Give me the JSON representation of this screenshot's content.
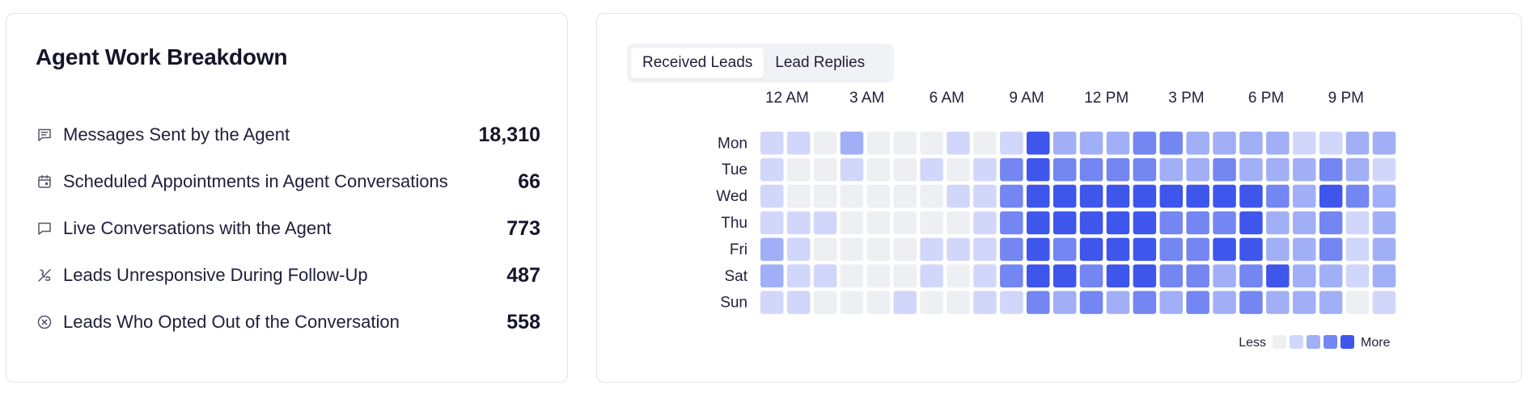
{
  "breakdown": {
    "title": "Agent Work Breakdown",
    "items": [
      {
        "icon": "message-lines-icon",
        "label": "Messages Sent by the Agent",
        "value": "18,310"
      },
      {
        "icon": "calendar-icon",
        "label": "Scheduled Appointments in Agent Conversations",
        "value": "66"
      },
      {
        "icon": "chat-bubble-icon",
        "label": "Live Conversations with the Agent",
        "value": "773"
      },
      {
        "icon": "phone-off-icon",
        "label": "Leads Unresponsive During Follow-Up",
        "value": "487"
      },
      {
        "icon": "circle-x-icon",
        "label": "Leads Who Opted Out of the Conversation",
        "value": "558"
      }
    ]
  },
  "activity": {
    "tabs": [
      {
        "label": "Received Leads",
        "active": true
      },
      {
        "label": "Lead Replies",
        "active": false
      }
    ],
    "legend": {
      "less": "Less",
      "more": "More"
    },
    "colors": [
      "#eeeff3",
      "#d1d7fb",
      "#a1aff7",
      "#7386f2",
      "#3f56ec"
    ]
  },
  "chart_data": {
    "type": "heatmap",
    "x_tick_labels": [
      "12 AM",
      "3 AM",
      "6 AM",
      "9 AM",
      "12 PM",
      "3 PM",
      "6 PM",
      "9 PM"
    ],
    "x_tick_hours": [
      0,
      3,
      6,
      9,
      12,
      15,
      18,
      21
    ],
    "x": [
      0,
      1,
      2,
      3,
      4,
      5,
      6,
      7,
      8,
      9,
      10,
      11,
      12,
      13,
      14,
      15,
      16,
      17,
      18,
      19,
      20,
      21,
      22,
      23
    ],
    "y": [
      "Mon",
      "Tue",
      "Wed",
      "Thu",
      "Fri",
      "Sat",
      "Sun"
    ],
    "levels": [
      0,
      1,
      2,
      3,
      4
    ],
    "values": [
      [
        1,
        1,
        0,
        2,
        0,
        0,
        0,
        1,
        0,
        1,
        4,
        2,
        2,
        2,
        3,
        3,
        2,
        2,
        2,
        2,
        1,
        1,
        2,
        2
      ],
      [
        1,
        0,
        0,
        1,
        0,
        0,
        1,
        0,
        1,
        3,
        4,
        3,
        3,
        3,
        3,
        2,
        2,
        3,
        2,
        2,
        2,
        3,
        2,
        1
      ],
      [
        1,
        0,
        0,
        0,
        0,
        0,
        0,
        1,
        1,
        3,
        4,
        4,
        4,
        4,
        4,
        4,
        4,
        4,
        4,
        3,
        2,
        4,
        3,
        2
      ],
      [
        1,
        1,
        1,
        0,
        0,
        0,
        0,
        0,
        1,
        3,
        4,
        4,
        4,
        4,
        4,
        3,
        3,
        3,
        4,
        2,
        2,
        3,
        1,
        2
      ],
      [
        2,
        1,
        0,
        0,
        0,
        0,
        1,
        1,
        1,
        3,
        4,
        3,
        4,
        4,
        4,
        3,
        3,
        4,
        4,
        2,
        2,
        3,
        1,
        2
      ],
      [
        2,
        1,
        1,
        0,
        0,
        0,
        1,
        0,
        1,
        3,
        4,
        4,
        3,
        4,
        4,
        3,
        3,
        2,
        3,
        4,
        2,
        2,
        1,
        2
      ],
      [
        1,
        1,
        0,
        0,
        0,
        1,
        0,
        0,
        1,
        1,
        3,
        2,
        3,
        2,
        3,
        2,
        3,
        2,
        3,
        2,
        2,
        2,
        0,
        1
      ]
    ]
  }
}
